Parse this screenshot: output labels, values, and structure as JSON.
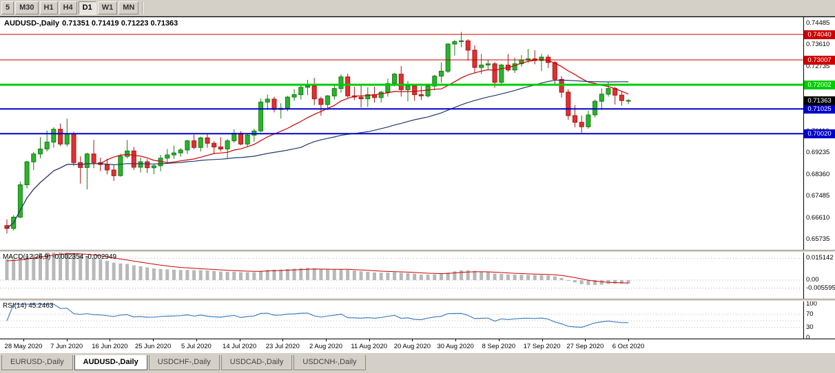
{
  "toolbar": {
    "timeframe_buttons": [
      {
        "label": "5",
        "active": false
      },
      {
        "label": "M30",
        "active": false
      },
      {
        "label": "H1",
        "active": false
      },
      {
        "label": "H4",
        "active": false
      },
      {
        "label": "D1",
        "active": true
      },
      {
        "label": "W1",
        "active": false
      },
      {
        "label": "MN",
        "active": false
      }
    ]
  },
  "chart": {
    "title": "AUDUSD-,Daily",
    "ohlc_readout": "0.71351 0.71419 0.71223 0.71363"
  },
  "chart_data": {
    "type": "candlestick",
    "symbol": "AUDUSD",
    "timeframe": "Daily",
    "x_labels": [
      "28 May 2020",
      "7 Jun 2020",
      "16 Jun 2020",
      "25 Jun 2020",
      "5 Jul 2020",
      "14 Jul 2020",
      "23 Jul 2020",
      "2 Aug 2020",
      "11 Aug 2020",
      "20 Aug 2020",
      "30 Aug 2020",
      "8 Sep 2020",
      "17 Sep 2020",
      "27 Sep 2020",
      "6 Oct 2020"
    ],
    "price_axis_labels": [
      "0.74485",
      "0.73610",
      "0.72735",
      "0.71860",
      "0.70985",
      "0.70110",
      "0.69235",
      "0.68360",
      "0.67485",
      "0.66610",
      "0.65735"
    ],
    "open": [
      0.663,
      0.6618,
      0.6664,
      0.6795,
      0.6888,
      0.692,
      0.694,
      0.6968,
      0.702,
      0.696,
      0.7,
      0.6885,
      0.6865,
      0.692,
      0.6885,
      0.6877,
      0.6855,
      0.6832,
      0.691,
      0.6932,
      0.6866,
      0.6888,
      0.6864,
      0.6872,
      0.6903,
      0.6916,
      0.6924,
      0.6936,
      0.6973,
      0.6946,
      0.6985,
      0.6963,
      0.6948,
      0.694,
      0.6973,
      0.7004,
      0.696,
      0.6996,
      0.7013,
      0.713,
      0.7142,
      0.71,
      0.7105,
      0.715,
      0.716,
      0.719,
      0.7195,
      0.7143,
      0.712,
      0.7155,
      0.7185,
      0.7232,
      0.7155,
      0.715,
      0.7143,
      0.716,
      0.7148,
      0.717,
      0.7205,
      0.7243,
      0.718,
      0.7195,
      0.716,
      0.7155,
      0.7195,
      0.7235,
      0.7255,
      0.7365,
      0.7375,
      0.7378,
      0.734,
      0.727,
      0.728,
      0.7285,
      0.721,
      0.728,
      0.726,
      0.7285,
      0.73,
      0.7305,
      0.7298,
      0.7312,
      0.729,
      0.7222,
      0.717,
      0.7075,
      0.7048,
      0.703,
      0.7078,
      0.7133,
      0.7162,
      0.7185,
      0.7158,
      0.7135
    ],
    "high": [
      0.6655,
      0.6672,
      0.6808,
      0.6892,
      0.6928,
      0.6988,
      0.7015,
      0.7028,
      0.7043,
      0.7063,
      0.701,
      0.691,
      0.6925,
      0.6977,
      0.6905,
      0.69,
      0.6875,
      0.692,
      0.6976,
      0.6948,
      0.6905,
      0.6899,
      0.688,
      0.6916,
      0.694,
      0.6954,
      0.6944,
      0.6977,
      0.6998,
      0.699,
      0.7,
      0.6972,
      0.6988,
      0.698,
      0.702,
      0.7012,
      0.7002,
      0.7022,
      0.7144,
      0.716,
      0.7152,
      0.7125,
      0.7155,
      0.7182,
      0.7198,
      0.722,
      0.7228,
      0.7152,
      0.7158,
      0.7198,
      0.7242,
      0.7245,
      0.7192,
      0.72,
      0.719,
      0.7192,
      0.7175,
      0.7225,
      0.7248,
      0.7276,
      0.7215,
      0.7202,
      0.7195,
      0.7205,
      0.724,
      0.729,
      0.7368,
      0.7382,
      0.7414,
      0.7385,
      0.736,
      0.7325,
      0.7302,
      0.7292,
      0.7285,
      0.7325,
      0.731,
      0.732,
      0.7345,
      0.734,
      0.7325,
      0.7322,
      0.7296,
      0.7235,
      0.7182,
      0.7118,
      0.7075,
      0.7095,
      0.714,
      0.7185,
      0.721,
      0.7192,
      0.7172,
      0.7142
    ],
    "low": [
      0.6598,
      0.661,
      0.666,
      0.678,
      0.6855,
      0.6902,
      0.693,
      0.6945,
      0.6952,
      0.695,
      0.6872,
      0.68,
      0.6776,
      0.6862,
      0.685,
      0.6837,
      0.681,
      0.6828,
      0.6902,
      0.6855,
      0.6845,
      0.6843,
      0.6838,
      0.685,
      0.688,
      0.69,
      0.6908,
      0.692,
      0.6938,
      0.693,
      0.6945,
      0.692,
      0.693,
      0.6902,
      0.6965,
      0.6955,
      0.6948,
      0.697,
      0.7008,
      0.7098,
      0.7088,
      0.7063,
      0.7093,
      0.7135,
      0.714,
      0.7158,
      0.7118,
      0.7075,
      0.7098,
      0.714,
      0.7168,
      0.7148,
      0.7138,
      0.7108,
      0.711,
      0.7128,
      0.7128,
      0.7152,
      0.7193,
      0.7152,
      0.7133,
      0.7135,
      0.7138,
      0.7148,
      0.7178,
      0.7208,
      0.7248,
      0.7318,
      0.7352,
      0.7298,
      0.7248,
      0.7243,
      0.7263,
      0.7188,
      0.7195,
      0.7253,
      0.7248,
      0.7273,
      0.7288,
      0.7283,
      0.7255,
      0.7268,
      0.7198,
      0.7148,
      0.7058,
      0.7028,
      0.7006,
      0.7022,
      0.7068,
      0.7098,
      0.7152,
      0.712,
      0.7115,
      0.7122
    ],
    "close": [
      0.6618,
      0.6664,
      0.6795,
      0.6888,
      0.692,
      0.694,
      0.6968,
      0.702,
      0.696,
      0.7,
      0.6885,
      0.6865,
      0.692,
      0.6885,
      0.6877,
      0.6855,
      0.6832,
      0.691,
      0.6932,
      0.6866,
      0.6888,
      0.6864,
      0.6872,
      0.6903,
      0.6916,
      0.6924,
      0.6936,
      0.6973,
      0.6946,
      0.6985,
      0.6963,
      0.6948,
      0.694,
      0.6973,
      0.7004,
      0.696,
      0.6996,
      0.7013,
      0.713,
      0.7142,
      0.71,
      0.7105,
      0.715,
      0.716,
      0.719,
      0.7195,
      0.7143,
      0.712,
      0.7155,
      0.7185,
      0.7232,
      0.7155,
      0.715,
      0.7143,
      0.716,
      0.7148,
      0.717,
      0.7205,
      0.7243,
      0.718,
      0.7195,
      0.716,
      0.7155,
      0.7195,
      0.7235,
      0.7255,
      0.7365,
      0.7375,
      0.7378,
      0.734,
      0.727,
      0.728,
      0.7285,
      0.721,
      0.728,
      0.726,
      0.7285,
      0.73,
      0.7305,
      0.7298,
      0.7312,
      0.729,
      0.7222,
      0.717,
      0.7075,
      0.7048,
      0.703,
      0.7078,
      0.7133,
      0.7162,
      0.7185,
      0.7158,
      0.7136,
      0.71363
    ],
    "hlines": [
      {
        "price": 0.7404,
        "label": "0.74040",
        "color": "#cc0000",
        "width": 1
      },
      {
        "price": 0.73007,
        "label": "0.73007",
        "color": "#cc0000",
        "width": 1
      },
      {
        "price": 0.72002,
        "label": "0.72002",
        "color": "#00cc00",
        "width": 3
      },
      {
        "price": 0.71025,
        "label": "0.71025",
        "color": "#0000cc",
        "width": 2
      },
      {
        "price": 0.7002,
        "label": "0.70020",
        "color": "#0000cc",
        "width": 2
      }
    ],
    "current_price": {
      "price": 0.71363,
      "label": "0.71363",
      "badge_color": "#000000"
    },
    "moving_averages": [
      {
        "period": 15,
        "color": "#cc0000"
      },
      {
        "period": 45,
        "color": "#1f3a6e"
      }
    ],
    "indicators": [
      {
        "name": "MACD",
        "label": "MACD(12,26,9)",
        "values_text": "-0.002354 -0.002949",
        "params": [
          12,
          26,
          9
        ],
        "axis_labels": [
          {
            "value": 0.015142,
            "label": "0.015142"
          },
          {
            "value": 0,
            "label": "0.00"
          },
          {
            "value": -0.005595,
            "label": "-0.005595"
          }
        ],
        "histogram_color": "#b8b8b8",
        "signal_color": "#cc0000"
      },
      {
        "name": "RSI",
        "label": "RSI(14)",
        "values_text": "45.2463",
        "params": [
          14
        ],
        "axis_labels": [
          {
            "value": 100,
            "label": "100"
          },
          {
            "value": 70,
            "label": "70"
          },
          {
            "value": 30,
            "label": "30"
          },
          {
            "value": 0,
            "label": "0"
          }
        ],
        "levels": [
          70,
          50,
          30
        ],
        "line_color": "#4080c0"
      }
    ],
    "colors": {
      "up": "#2ab42a",
      "up_border": "#157a15",
      "down": "#e03030",
      "down_border": "#a81414",
      "background": "#ffffff"
    }
  },
  "tabs": [
    {
      "label": "EURUSD-,Daily",
      "active": false
    },
    {
      "label": "AUDUSD-,Daily",
      "active": true
    },
    {
      "label": "USDCHF-,Daily",
      "active": false
    },
    {
      "label": "USDCAD-,Daily",
      "active": false
    },
    {
      "label": "USDCNH-,Daily",
      "active": false
    }
  ]
}
